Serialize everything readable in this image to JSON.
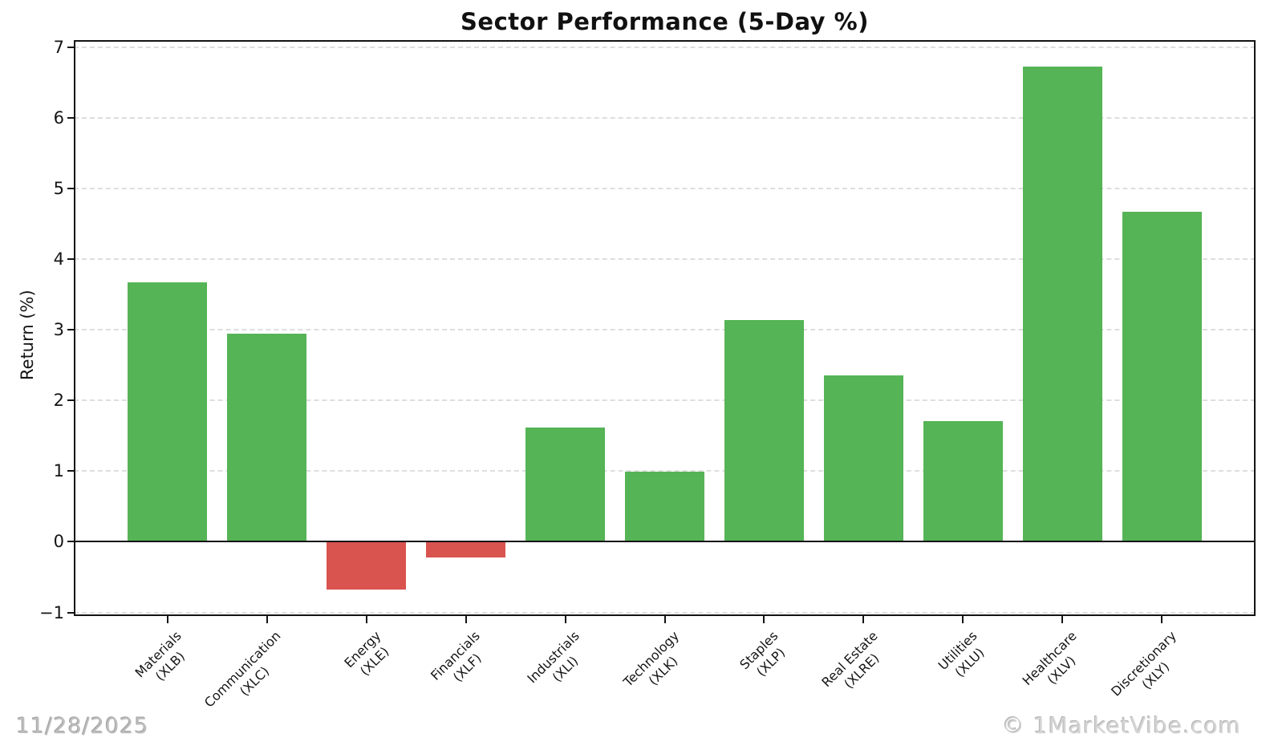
{
  "chart_data": {
    "type": "bar",
    "title": "Sector Performance (5-Day %)",
    "xlabel": "",
    "ylabel": "Return (%)",
    "categories": [
      {
        "name": "Materials",
        "ticker": "(XLB)"
      },
      {
        "name": "Communication",
        "ticker": "(XLC)"
      },
      {
        "name": "Energy",
        "ticker": "(XLE)"
      },
      {
        "name": "Financials",
        "ticker": "(XLF)"
      },
      {
        "name": "Industrials",
        "ticker": "(XLI)"
      },
      {
        "name": "Technology",
        "ticker": "(XLK)"
      },
      {
        "name": "Staples",
        "ticker": "(XLP)"
      },
      {
        "name": "Real Estate",
        "ticker": "(XLRE)"
      },
      {
        "name": "Utilities",
        "ticker": "(XLU)"
      },
      {
        "name": "Healthcare",
        "ticker": "(XLV)"
      },
      {
        "name": "Discretionary",
        "ticker": "(XLY)"
      }
    ],
    "values": [
      3.67,
      2.95,
      -0.67,
      -0.22,
      1.62,
      0.99,
      3.14,
      2.36,
      1.71,
      6.72,
      4.67
    ],
    "yticks": [
      -1,
      0,
      1,
      2,
      3,
      4,
      5,
      6,
      7
    ],
    "ytick_labels": [
      "−1",
      "0",
      "1",
      "2",
      "3",
      "4",
      "5",
      "6",
      "7"
    ],
    "ylim": [
      -1.05,
      7.1
    ],
    "xlim": [
      -0.94,
      10.94
    ],
    "bar_width": 0.8,
    "grid": "horizontal dashed, on",
    "legend": "none",
    "zero_line": true,
    "colors": {
      "positive": "#55b455",
      "negative": "#d9534f",
      "grid": "#dedede",
      "axis": "#141414"
    }
  },
  "overlays": {
    "date_label": "11/28/2025",
    "watermark": "© 1MarketVibe.com"
  }
}
